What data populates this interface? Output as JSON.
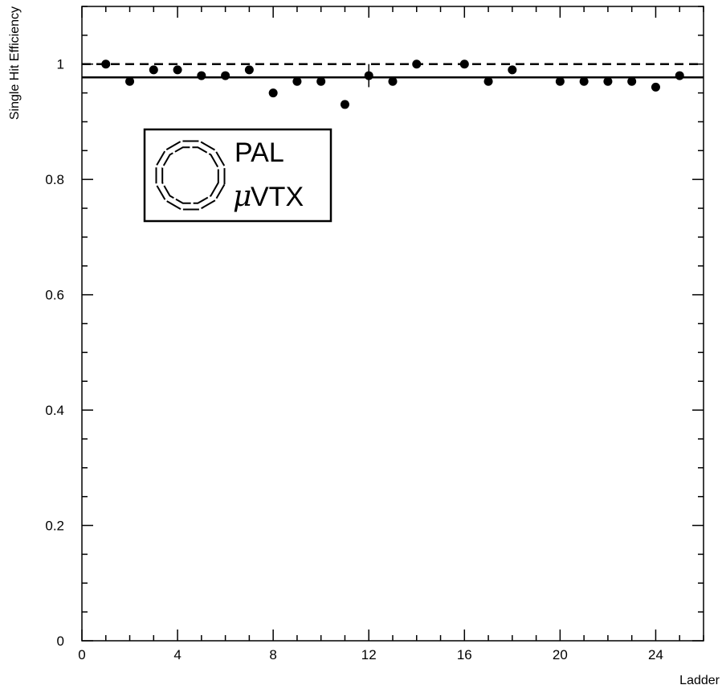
{
  "chart_data": {
    "type": "scatter",
    "xlabel": "Ladder",
    "ylabel": "Single Hit Efficiency",
    "xlim": [
      0,
      26
    ],
    "ylim": [
      0,
      1.1
    ],
    "x_ticks": [
      "0",
      "4",
      "8",
      "12",
      "16",
      "20",
      "24"
    ],
    "y_ticks": [
      "0",
      "0.2",
      "0.4",
      "0.6",
      "0.8",
      "1"
    ],
    "series": [
      {
        "x": [
          1,
          2,
          3,
          4,
          5,
          6,
          7,
          8,
          9,
          10,
          11,
          12,
          13,
          14,
          16,
          17,
          18,
          20,
          21,
          22,
          23,
          24,
          25
        ],
        "y": [
          1.0,
          0.97,
          0.99,
          0.99,
          0.98,
          0.98,
          0.99,
          0.95,
          0.97,
          0.97,
          0.93,
          0.98,
          0.97,
          1.0,
          1.0,
          0.97,
          0.99,
          0.97,
          0.97,
          0.97,
          0.97,
          0.96,
          0.98
        ]
      }
    ],
    "reference_lines": [
      {
        "y": 1.0,
        "style": "dashed"
      },
      {
        "y": 0.977,
        "style": "solid"
      }
    ],
    "grid": false,
    "legend": "none",
    "logo": {
      "line1": "PAL",
      "line2": "VTX",
      "prefix_symbol": "μ"
    }
  }
}
